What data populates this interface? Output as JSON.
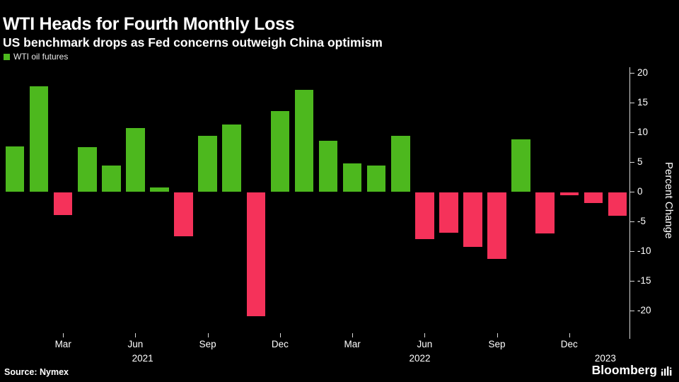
{
  "header": {
    "title": "WTI Heads for Fourth Monthly Loss",
    "subtitle": "US benchmark drops as Fed concerns outweigh China optimism"
  },
  "legend": {
    "label": "WTI oil futures",
    "swatch_color": "#4db81e"
  },
  "footer": {
    "source": "Source: Nymex",
    "brand": "Bloomberg"
  },
  "chart_data": {
    "type": "bar",
    "title": "WTI Heads for Fourth Monthly Loss",
    "xlabel": "",
    "ylabel": "Percent Change",
    "ylim": [
      -23.8,
      21
    ],
    "yticks": [
      20,
      15,
      10,
      5,
      0,
      -5,
      -10,
      -15,
      -20
    ],
    "grid": false,
    "legend_position": "top-left",
    "categories": [
      "Jan 2021",
      "Feb 2021",
      "Mar 2021",
      "Apr 2021",
      "May 2021",
      "Jun 2021",
      "Jul 2021",
      "Aug 2021",
      "Sep 2021",
      "Oct 2021",
      "Nov 2021",
      "Dec 2021",
      "Jan 2022",
      "Feb 2022",
      "Mar 2022",
      "Apr 2022",
      "May 2022",
      "Jun 2022",
      "Jul 2022",
      "Aug 2022",
      "Sep 2022",
      "Oct 2022",
      "Nov 2022",
      "Dec 2022",
      "Jan 2023",
      "Feb 2023"
    ],
    "values": [
      7.6,
      17.8,
      -3.8,
      7.5,
      4.4,
      10.8,
      0.7,
      -7.4,
      9.5,
      11.4,
      -20.8,
      13.6,
      17.2,
      8.6,
      4.8,
      4.4,
      9.5,
      -7.8,
      -6.8,
      -9.2,
      -11.2,
      8.9,
      -6.9,
      -0.4,
      -1.8,
      -3.9
    ],
    "colors": {
      "positive": "#4db81e",
      "negative": "#f5325a"
    },
    "x_ticks": [
      {
        "label": "Mar",
        "index": 2
      },
      {
        "label": "Jun",
        "index": 5
      },
      {
        "label": "Sep",
        "index": 8
      },
      {
        "label": "Dec",
        "index": 11
      },
      {
        "label": "Mar",
        "index": 14
      },
      {
        "label": "Jun",
        "index": 17
      },
      {
        "label": "Sep",
        "index": 20
      },
      {
        "label": "Dec",
        "index": 23
      }
    ],
    "year_ticks": [
      {
        "label": "2021",
        "index": 5.3
      },
      {
        "label": "2022",
        "index": 16.8
      },
      {
        "label": "2023",
        "index": 24.5
      }
    ]
  }
}
